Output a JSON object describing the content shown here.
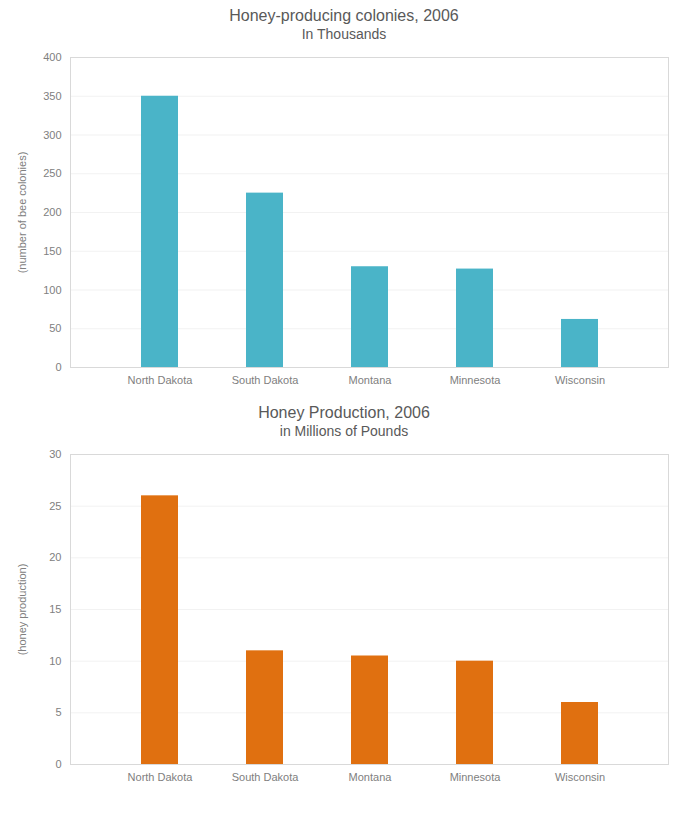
{
  "chart_data": [
    {
      "type": "bar",
      "title": "Honey-producing colonies, 2006",
      "subtitle": "In Thousands",
      "categories": [
        "North Dakota",
        "South Dakota",
        "Montana",
        "Minnesota",
        "Wisconsin"
      ],
      "values": [
        350,
        225,
        130,
        127,
        62
      ],
      "color": "#4ab4c8",
      "ylabel": "(number of bee colonies)",
      "ylim": [
        0,
        400
      ],
      "yticks": [
        0,
        50,
        100,
        150,
        200,
        250,
        300,
        350,
        400
      ],
      "grid": true
    },
    {
      "type": "bar",
      "title": "Honey Production, 2006",
      "subtitle": "in Millions of Pounds",
      "categories": [
        "North Dakota",
        "South Dakota",
        "Montana",
        "Minnesota",
        "Wisconsin"
      ],
      "values": [
        26,
        11,
        10.5,
        10,
        6
      ],
      "color": "#e07010",
      "ylabel": "(honey production)",
      "ylim": [
        0,
        30
      ],
      "yticks": [
        0,
        5,
        10,
        15,
        20,
        25,
        30
      ],
      "grid": true
    }
  ]
}
